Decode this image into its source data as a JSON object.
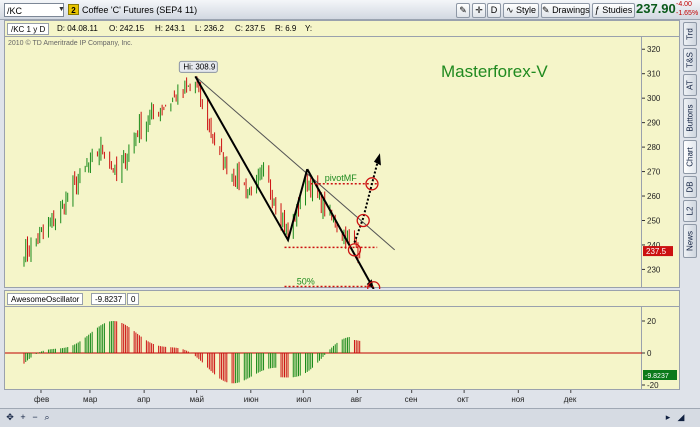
{
  "toolbar": {
    "symbol": "/KC",
    "link_badge": "2",
    "title": "Coffee 'C' Futures (SEP4 11)",
    "btn_d": "D",
    "btn_style": "Style",
    "btn_drawings": "Drawings",
    "btn_studies": "Studies",
    "last_price": "237.90",
    "change": "-4.00",
    "change_pct": "-1.65%"
  },
  "header": {
    "series": "/KC 1 y D",
    "date": "D: 04.08.11",
    "open": "O: 242.15",
    "high": "H: 243.1",
    "low": "L: 236.2",
    "close": "C: 237.5",
    "range": "R: 6.9",
    "y": "Y:",
    "copyright": "2010 © TD Ameritrade IP Company, Inc."
  },
  "side_tabs": [
    "Trd",
    "T&S",
    "AT",
    "Buttons",
    "Chart",
    "DB",
    "L2",
    "News"
  ],
  "chart_annotations": {
    "watermark": "Masterforex-V",
    "high_label": "Hi: 308.9",
    "pivot_label": "pivotMF",
    "fib_label": "50%",
    "last_tag": "237.5"
  },
  "price_axis": {
    "ticks": [
      "320",
      "310",
      "300",
      "290",
      "280",
      "270",
      "260",
      "250",
      "240",
      "230"
    ]
  },
  "oscillator": {
    "name": "AwesomeOscillator",
    "value": "-9.8237",
    "param": "0",
    "ticks": [
      "20",
      "0",
      "-20"
    ],
    "tag": "-9.8237"
  },
  "months": [
    "фев",
    "мар",
    "апр",
    "май",
    "июн",
    "июл",
    "авг",
    "сен",
    "окт",
    "ноя",
    "дек"
  ],
  "colors": {
    "pane_bg": "#f5f5c9",
    "up": "#1a8a1a",
    "down": "#cc1111",
    "watermark": "#1f8a1f"
  },
  "chart_data": {
    "type": "candlestick",
    "instrument": "Coffee 'C' Futures (SEP4 11)",
    "ylim": [
      222,
      325
    ],
    "swing_points": [
      {
        "date": "2011-05-02",
        "value": 308.9,
        "label": "Hi: 308.9"
      },
      {
        "date": "2011-06-24",
        "value": 242
      },
      {
        "date": "2011-07-05",
        "value": 271
      },
      {
        "date": "2011-08-04",
        "value": 237.5
      }
    ],
    "levels": {
      "pivot": 265,
      "support": 239,
      "fifty_pct": 223
    }
  }
}
